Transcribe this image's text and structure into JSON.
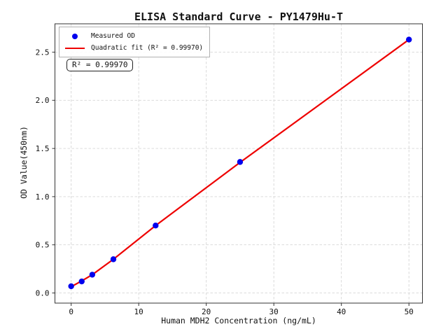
{
  "figure": {
    "title": "ELISA Standard Curve - PY1479Hu-T",
    "background": "#ffffff"
  },
  "axes": {
    "xlabel": "Human MDH2 Concentration (ng/mL)",
    "ylabel": "OD Value(450nm)",
    "x_ticks": [
      {
        "label": "0",
        "value": 0
      },
      {
        "label": "10",
        "value": 10
      },
      {
        "label": "20",
        "value": 20
      },
      {
        "label": "30",
        "value": 30
      },
      {
        "label": "40",
        "value": 40
      },
      {
        "label": "50",
        "value": 50
      }
    ],
    "y_ticks": [
      {
        "label": "0.0",
        "value": 0.0
      },
      {
        "label": "0.5",
        "value": 0.5
      },
      {
        "label": "1.0",
        "value": 1.0
      },
      {
        "label": "1.5",
        "value": 1.5
      },
      {
        "label": "2.0",
        "value": 2.0
      },
      {
        "label": "2.5",
        "value": 2.5
      }
    ]
  },
  "legend": {
    "entries": [
      {
        "marker": "dot",
        "color": "#0000ee",
        "label": "Measured OD"
      },
      {
        "marker": "line",
        "color": "#ee0000",
        "label": "Quadratic fit (R² = 0.99970)"
      }
    ]
  },
  "annotation": {
    "text": "R² = 0.99970"
  },
  "chart_data": {
    "type": "scatter",
    "title": "ELISA Standard Curve - PY1479Hu-T",
    "xlabel": "Human MDH2 Concentration (ng/mL)",
    "ylabel": "OD Value(450nm)",
    "xlim": [
      -2.4,
      52.0
    ],
    "ylim": [
      -0.105,
      2.794
    ],
    "grid": true,
    "grid_style": "dashed",
    "grid_color": "#d6d6d6",
    "legend_position": "upper left",
    "series": [
      {
        "name": "Measured OD",
        "type": "scatter",
        "color": "#0000ee",
        "x": [
          0,
          1.5625,
          3.125,
          6.25,
          12.5,
          25,
          50
        ],
        "y": [
          0.07,
          0.12,
          0.19,
          0.35,
          0.7,
          1.36,
          2.63
        ]
      },
      {
        "name": "Quadratic fit (R² = 0.99970)",
        "type": "line",
        "color": "#ee0000",
        "fit": "quadratic",
        "r_squared": 0.9997,
        "x": [
          0,
          1.5625,
          3.125,
          6.25,
          12.5,
          25,
          50
        ],
        "y": [
          0.065,
          0.125,
          0.19,
          0.35,
          0.7,
          1.355,
          2.63
        ]
      }
    ]
  }
}
